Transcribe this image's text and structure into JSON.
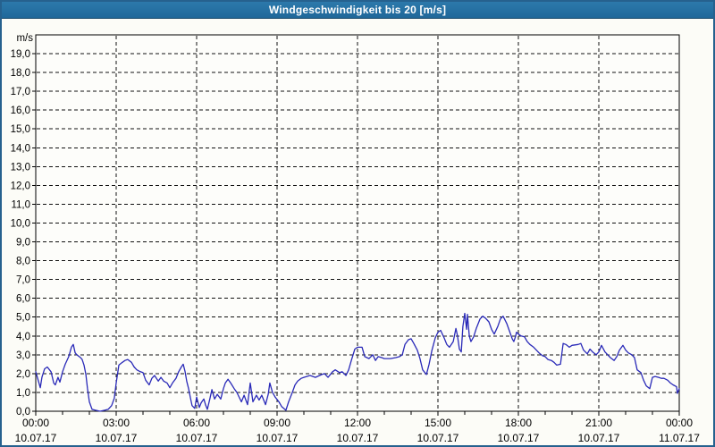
{
  "window": {
    "title": "Windgeschwindigkeit bis 20 [m/s]"
  },
  "colors": {
    "titlebar_bg": "#2471a2",
    "titlebar_text": "#ffffff",
    "window_border": "#26618e",
    "window_bg": "#fcfcf7",
    "plot_bg": "#fdfdfa",
    "grid": "#111111",
    "axis": "#000000",
    "line": "#2a2ab8"
  },
  "chart_data": {
    "type": "line",
    "title": "Windgeschwindigkeit bis 20 [m/s]",
    "ylabel": "m/s",
    "xlabel": "",
    "ylim": [
      0,
      20
    ],
    "xlim_hours": [
      0,
      24
    ],
    "grid": true,
    "legend": false,
    "ytick_labels": [
      "0,0",
      "1,0",
      "2,0",
      "3,0",
      "4,0",
      "5,0",
      "6,0",
      "7,0",
      "8,0",
      "9,0",
      "10,0",
      "11,0",
      "12,0",
      "13,0",
      "14,0",
      "15,0",
      "16,0",
      "17,0",
      "18,0",
      "19,0"
    ],
    "xticks": [
      {
        "hour": 0,
        "time": "00:00",
        "date": "10.07.17"
      },
      {
        "hour": 3,
        "time": "03:00",
        "date": "10.07.17"
      },
      {
        "hour": 6,
        "time": "06:00",
        "date": "10.07.17"
      },
      {
        "hour": 9,
        "time": "09:00",
        "date": "10.07.17"
      },
      {
        "hour": 12,
        "time": "12:00",
        "date": "10.07.17"
      },
      {
        "hour": 15,
        "time": "15:00",
        "date": "10.07.17"
      },
      {
        "hour": 18,
        "time": "18:00",
        "date": "10.07.17"
      },
      {
        "hour": 21,
        "time": "21:00",
        "date": "10.07.17"
      },
      {
        "hour": 24,
        "time": "00:00",
        "date": "11.07.17"
      }
    ],
    "series_name": "Windgeschwindigkeit",
    "points": [
      [
        0,
        2.1
      ],
      [
        0.1,
        1.6
      ],
      [
        0.17,
        1.25
      ],
      [
        0.23,
        1.8
      ],
      [
        0.33,
        2.25
      ],
      [
        0.43,
        2.35
      ],
      [
        0.57,
        2.1
      ],
      [
        0.67,
        1.5
      ],
      [
        0.73,
        1.4
      ],
      [
        0.83,
        1.8
      ],
      [
        0.9,
        1.55
      ],
      [
        1,
        2.1
      ],
      [
        1.1,
        2.5
      ],
      [
        1.23,
        2.9
      ],
      [
        1.33,
        3.4
      ],
      [
        1.4,
        3.55
      ],
      [
        1.47,
        3.1
      ],
      [
        1.53,
        3
      ],
      [
        1.67,
        2.85
      ],
      [
        1.73,
        2.75
      ],
      [
        1.8,
        2.45
      ],
      [
        1.87,
        1.95
      ],
      [
        1.93,
        1.2
      ],
      [
        2,
        0.5
      ],
      [
        2.1,
        0.1
      ],
      [
        2.23,
        0.05
      ],
      [
        2.4,
        0
      ],
      [
        2.57,
        0.05
      ],
      [
        2.7,
        0.1
      ],
      [
        2.83,
        0.3
      ],
      [
        2.93,
        0.7
      ],
      [
        3,
        1.5
      ],
      [
        3.1,
        2.45
      ],
      [
        3.23,
        2.6
      ],
      [
        3.33,
        2.7
      ],
      [
        3.43,
        2.75
      ],
      [
        3.57,
        2.6
      ],
      [
        3.67,
        2.35
      ],
      [
        3.77,
        2.2
      ],
      [
        3.9,
        2.1
      ],
      [
        4,
        2.05
      ],
      [
        4.1,
        1.65
      ],
      [
        4.23,
        1.4
      ],
      [
        4.33,
        1.75
      ],
      [
        4.43,
        1.9
      ],
      [
        4.57,
        1.6
      ],
      [
        4.67,
        1.8
      ],
      [
        4.77,
        1.6
      ],
      [
        4.9,
        1.5
      ],
      [
        5,
        1.25
      ],
      [
        5.1,
        1.5
      ],
      [
        5.23,
        1.75
      ],
      [
        5.33,
        2.1
      ],
      [
        5.43,
        2.35
      ],
      [
        5.5,
        2.5
      ],
      [
        5.57,
        2.1
      ],
      [
        5.63,
        1.6
      ],
      [
        5.7,
        1.2
      ],
      [
        5.77,
        0.7
      ],
      [
        5.83,
        0.3
      ],
      [
        5.93,
        0.15
      ],
      [
        6,
        0.75
      ],
      [
        6.1,
        0.2
      ],
      [
        6.17,
        0.45
      ],
      [
        6.27,
        0.65
      ],
      [
        6.33,
        0.35
      ],
      [
        6.4,
        0.1
      ],
      [
        6.5,
        0.7
      ],
      [
        6.57,
        1.15
      ],
      [
        6.67,
        0.65
      ],
      [
        6.77,
        0.9
      ],
      [
        6.9,
        0.65
      ],
      [
        7,
        1.2
      ],
      [
        7.07,
        1.5
      ],
      [
        7.17,
        1.7
      ],
      [
        7.27,
        1.5
      ],
      [
        7.4,
        1.2
      ],
      [
        7.5,
        1
      ],
      [
        7.67,
        0.5
      ],
      [
        7.77,
        0.85
      ],
      [
        7.9,
        0.35
      ],
      [
        8,
        1.5
      ],
      [
        8.1,
        0.5
      ],
      [
        8.23,
        0.85
      ],
      [
        8.33,
        0.6
      ],
      [
        8.43,
        0.85
      ],
      [
        8.57,
        0.35
      ],
      [
        8.67,
        0.9
      ],
      [
        8.73,
        1.5
      ],
      [
        8.83,
        1
      ],
      [
        8.93,
        0.75
      ],
      [
        9.07,
        0.5
      ],
      [
        9.17,
        0.25
      ],
      [
        9.33,
        0.05
      ],
      [
        9.43,
        0.5
      ],
      [
        9.57,
        1
      ],
      [
        9.67,
        1.4
      ],
      [
        9.77,
        1.6
      ],
      [
        9.9,
        1.75
      ],
      [
        10,
        1.8
      ],
      [
        10.23,
        1.9
      ],
      [
        10.43,
        1.8
      ],
      [
        10.67,
        1.95
      ],
      [
        10.77,
        2
      ],
      [
        10.9,
        1.8
      ],
      [
        11.07,
        2.1
      ],
      [
        11.17,
        2.2
      ],
      [
        11.33,
        2.05
      ],
      [
        11.43,
        2.1
      ],
      [
        11.57,
        1.9
      ],
      [
        11.67,
        2.2
      ],
      [
        11.77,
        2.7
      ],
      [
        11.9,
        3.3
      ],
      [
        12,
        3.4
      ],
      [
        12.17,
        3.4
      ],
      [
        12.27,
        2.9
      ],
      [
        12.43,
        2.8
      ],
      [
        12.57,
        3
      ],
      [
        12.67,
        2.7
      ],
      [
        12.77,
        2.9
      ],
      [
        12.9,
        2.85
      ],
      [
        13,
        2.8
      ],
      [
        13.23,
        2.8
      ],
      [
        13.43,
        2.85
      ],
      [
        13.57,
        2.9
      ],
      [
        13.67,
        3
      ],
      [
        13.77,
        3.55
      ],
      [
        13.9,
        3.8
      ],
      [
        14,
        3.85
      ],
      [
        14.1,
        3.6
      ],
      [
        14.23,
        3.25
      ],
      [
        14.33,
        2.8
      ],
      [
        14.43,
        2.2
      ],
      [
        14.57,
        1.95
      ],
      [
        14.67,
        2.5
      ],
      [
        14.77,
        3.2
      ],
      [
        14.9,
        3.9
      ],
      [
        15,
        4.2
      ],
      [
        15.1,
        4.3
      ],
      [
        15.23,
        3.9
      ],
      [
        15.33,
        3.55
      ],
      [
        15.43,
        3.4
      ],
      [
        15.57,
        3.7
      ],
      [
        15.67,
        4.4
      ],
      [
        15.73,
        4
      ],
      [
        15.8,
        3.3
      ],
      [
        15.87,
        3.15
      ],
      [
        15.93,
        4.5
      ],
      [
        16,
        5.2
      ],
      [
        16.07,
        4.35
      ],
      [
        16.1,
        5.15
      ],
      [
        16.17,
        4
      ],
      [
        16.23,
        3.7
      ],
      [
        16.33,
        3.95
      ],
      [
        16.43,
        4.4
      ],
      [
        16.57,
        4.9
      ],
      [
        16.67,
        5.05
      ],
      [
        16.77,
        4.95
      ],
      [
        16.9,
        4.75
      ],
      [
        17,
        4.35
      ],
      [
        17.1,
        4.1
      ],
      [
        17.23,
        4.5
      ],
      [
        17.33,
        4.9
      ],
      [
        17.43,
        5.05
      ],
      [
        17.57,
        4.65
      ],
      [
        17.67,
        4.25
      ],
      [
        17.77,
        3.85
      ],
      [
        17.83,
        3.7
      ],
      [
        17.9,
        4
      ],
      [
        17.93,
        4.2
      ],
      [
        18,
        4.1
      ],
      [
        18.1,
        4
      ],
      [
        18.23,
        3.95
      ],
      [
        18.33,
        3.7
      ],
      [
        18.43,
        3.55
      ],
      [
        18.57,
        3.4
      ],
      [
        18.67,
        3.25
      ],
      [
        18.77,
        3.1
      ],
      [
        18.9,
        2.95
      ],
      [
        19,
        2.9
      ],
      [
        19.1,
        2.75
      ],
      [
        19.23,
        2.7
      ],
      [
        19.33,
        2.6
      ],
      [
        19.43,
        2.45
      ],
      [
        19.57,
        2.5
      ],
      [
        19.67,
        3.6
      ],
      [
        19.77,
        3.55
      ],
      [
        19.9,
        3.4
      ],
      [
        20,
        3.5
      ],
      [
        20.23,
        3.55
      ],
      [
        20.33,
        3.6
      ],
      [
        20.43,
        3.25
      ],
      [
        20.57,
        3.05
      ],
      [
        20.67,
        3.3
      ],
      [
        20.77,
        3.15
      ],
      [
        20.9,
        3
      ],
      [
        21,
        3.15
      ],
      [
        21.1,
        3.5
      ],
      [
        21.23,
        3.15
      ],
      [
        21.33,
        3
      ],
      [
        21.43,
        2.85
      ],
      [
        21.57,
        2.7
      ],
      [
        21.67,
        2.9
      ],
      [
        21.77,
        3.25
      ],
      [
        21.9,
        3.5
      ],
      [
        22,
        3.25
      ],
      [
        22.1,
        3.1
      ],
      [
        22.23,
        3
      ],
      [
        22.33,
        2.85
      ],
      [
        22.43,
        2.2
      ],
      [
        22.57,
        2.05
      ],
      [
        22.67,
        1.65
      ],
      [
        22.77,
        1.35
      ],
      [
        22.9,
        1.2
      ],
      [
        23,
        1.8
      ],
      [
        23.1,
        1.85
      ],
      [
        23.23,
        1.8
      ],
      [
        23.33,
        1.75
      ],
      [
        23.43,
        1.75
      ],
      [
        23.57,
        1.65
      ],
      [
        23.67,
        1.5
      ],
      [
        23.77,
        1.4
      ],
      [
        23.9,
        1.3
      ],
      [
        23.93,
        0.95
      ],
      [
        24,
        1.2
      ]
    ]
  }
}
